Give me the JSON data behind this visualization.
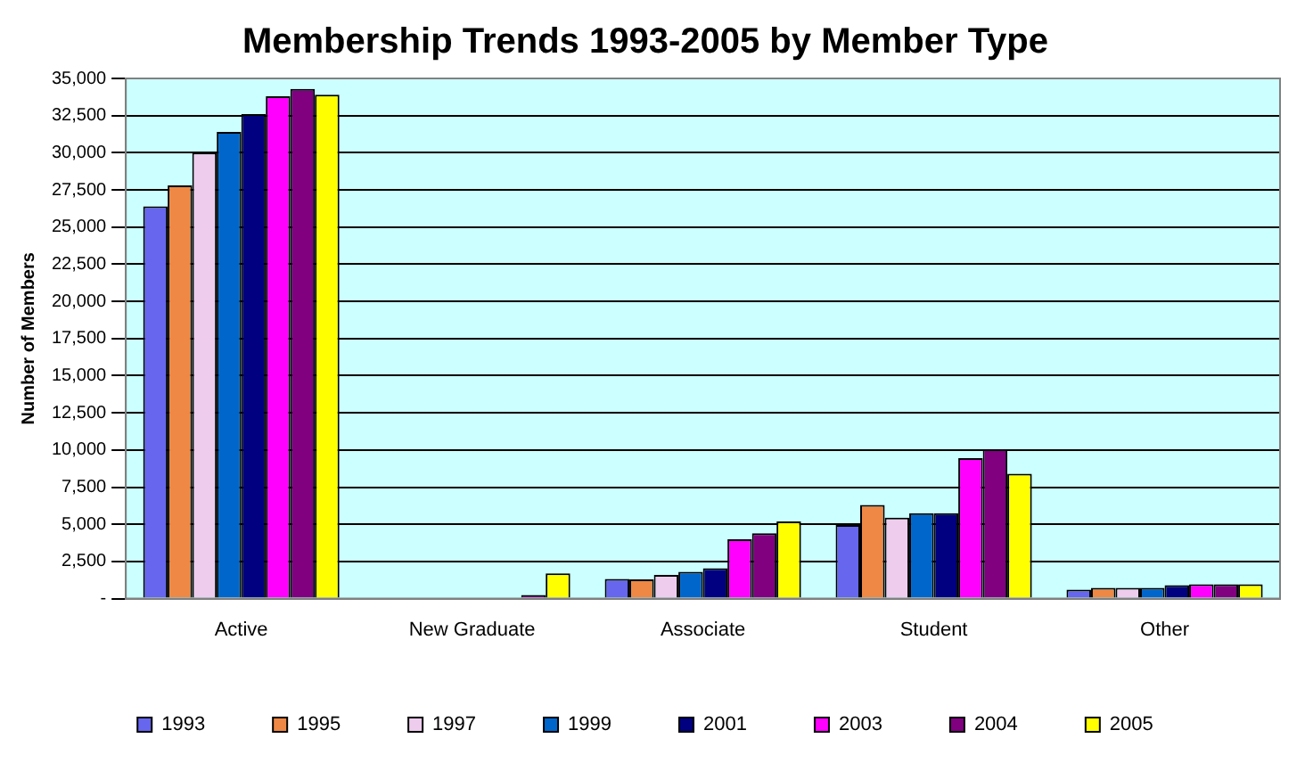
{
  "chart_data": {
    "type": "bar",
    "title": "Membership Trends 1993-2005 by Member Type",
    "ylabel": "Number of Members",
    "categories": [
      "Active",
      "New Graduate",
      "Associate",
      "Student",
      "Other"
    ],
    "series": [
      {
        "name": "1993",
        "color": "#6666ee",
        "values": [
          26400,
          null,
          1330,
          4950,
          600
        ]
      },
      {
        "name": "1995",
        "color": "#ee8844",
        "values": [
          27800,
          null,
          1300,
          6300,
          720
        ]
      },
      {
        "name": "1997",
        "color": "#eeccee",
        "values": [
          30000,
          null,
          1600,
          5450,
          720
        ]
      },
      {
        "name": "1999",
        "color": "#0066cc",
        "values": [
          31400,
          null,
          1800,
          5750,
          720
        ]
      },
      {
        "name": "2001",
        "color": "#000080",
        "values": [
          32600,
          null,
          2050,
          5750,
          900
        ]
      },
      {
        "name": "2003",
        "color": "#ff00ff",
        "values": [
          33800,
          null,
          4000,
          9450,
          970
        ]
      },
      {
        "name": "2004",
        "color": "#800080",
        "values": [
          34300,
          250,
          4400,
          10050,
          970
        ]
      },
      {
        "name": "2005",
        "color": "#ffff00",
        "values": [
          33900,
          1700,
          5200,
          8400,
          970
        ]
      }
    ],
    "ylim": [
      0,
      35000
    ],
    "yticks": [
      {
        "value": 0,
        "label": "-"
      },
      {
        "value": 2500,
        "label": "2,500"
      },
      {
        "value": 5000,
        "label": "5,000"
      },
      {
        "value": 7500,
        "label": "7,500"
      },
      {
        "value": 10000,
        "label": "10,000"
      },
      {
        "value": 12500,
        "label": "12,500"
      },
      {
        "value": 15000,
        "label": "15,000"
      },
      {
        "value": 17500,
        "label": "17,500"
      },
      {
        "value": 20000,
        "label": "20,000"
      },
      {
        "value": 22500,
        "label": "22,500"
      },
      {
        "value": 25000,
        "label": "25,000"
      },
      {
        "value": 27500,
        "label": "27,500"
      },
      {
        "value": 30000,
        "label": "30,000"
      },
      {
        "value": 32500,
        "label": "32,500"
      },
      {
        "value": 35000,
        "label": "35,000"
      }
    ],
    "grid": "y",
    "legend": "bottom"
  }
}
